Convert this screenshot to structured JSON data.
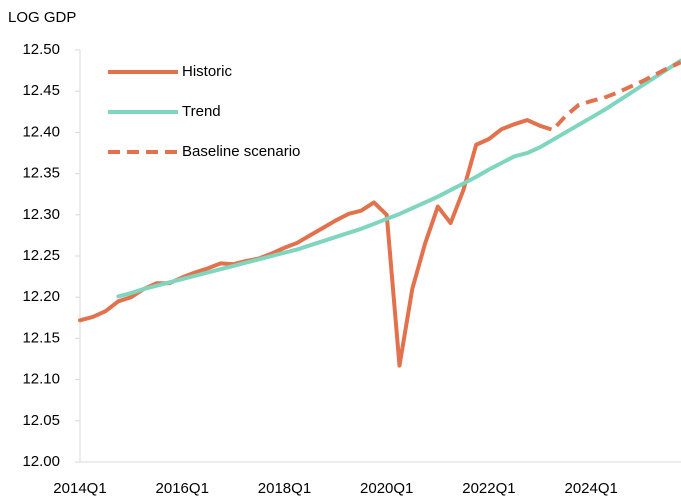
{
  "chart_data": {
    "type": "line",
    "ylabel": "LOG GDP",
    "categories": [
      "2014Q1",
      null,
      null,
      null,
      null,
      null,
      null,
      null,
      "2016Q1",
      null,
      null,
      null,
      null,
      null,
      null,
      null,
      "2018Q1",
      null,
      null,
      null,
      null,
      null,
      null,
      null,
      "2020Q1",
      null,
      null,
      null,
      null,
      null,
      null,
      null,
      "2022Q1",
      null,
      null,
      null,
      null,
      null,
      null,
      null,
      "2024Q1",
      null,
      null,
      null,
      null,
      null,
      null,
      null
    ],
    "series": [
      {
        "name": "Historic",
        "color": "#e2714d",
        "style": "solid",
        "values": [
          12.172,
          12.176,
          12.183,
          12.195,
          12.2,
          12.21,
          12.217,
          12.217,
          12.224,
          12.23,
          12.235,
          12.241,
          12.24,
          12.244,
          12.247,
          12.253,
          12.26,
          12.266,
          12.275,
          12.284,
          12.293,
          12.301,
          12.305,
          12.315,
          12.3,
          12.117,
          12.21,
          12.265,
          12.31,
          12.29,
          12.33,
          12.385,
          12.392,
          12.404,
          12.41,
          12.415,
          12.408,
          null,
          null,
          null,
          null,
          null,
          null,
          null,
          null,
          null,
          null,
          null
        ]
      },
      {
        "name": "Trend",
        "color": "#7fd5bd",
        "style": "solid",
        "values": [
          null,
          null,
          null,
          12.201,
          12.205,
          12.21,
          12.214,
          12.218,
          12.222,
          12.226,
          12.23,
          12.234,
          12.238,
          12.242,
          12.246,
          12.25,
          12.254,
          12.258,
          12.263,
          12.268,
          12.273,
          12.278,
          12.283,
          12.289,
          12.295,
          12.301,
          12.308,
          12.315,
          12.322,
          12.33,
          12.338,
          12.346,
          12.355,
          12.363,
          12.371,
          12.375,
          12.382,
          12.391,
          12.4,
          12.409,
          12.418,
          12.427,
          12.437,
          12.447,
          12.457,
          12.467,
          12.477,
          12.487
        ]
      },
      {
        "name": "Baseline scenario",
        "color": "#e2714d",
        "style": "dashed",
        "values": [
          null,
          null,
          null,
          null,
          null,
          null,
          null,
          null,
          null,
          null,
          null,
          null,
          null,
          null,
          null,
          null,
          null,
          null,
          null,
          null,
          null,
          null,
          null,
          null,
          null,
          null,
          null,
          null,
          null,
          null,
          null,
          null,
          null,
          null,
          null,
          null,
          12.408,
          12.403,
          12.42,
          12.433,
          12.438,
          12.442,
          12.448,
          12.455,
          12.462,
          12.47,
          12.478,
          12.485
        ]
      }
    ],
    "ylim": [
      12,
      12.5
    ],
    "yticks": [
      {
        "value": 12,
        "label": "12.00"
      },
      12.05,
      {
        "value": 12.1,
        "label": "12.10"
      },
      12.15,
      {
        "value": 12.2,
        "label": "12.20"
      },
      12.25,
      {
        "value": 12.3,
        "label": "12.30"
      },
      12.35,
      {
        "value": 12.4,
        "label": "12.40"
      },
      12.45,
      {
        "value": 12.5,
        "label": "12.50"
      }
    ],
    "grid": false,
    "legend": "upper left"
  }
}
